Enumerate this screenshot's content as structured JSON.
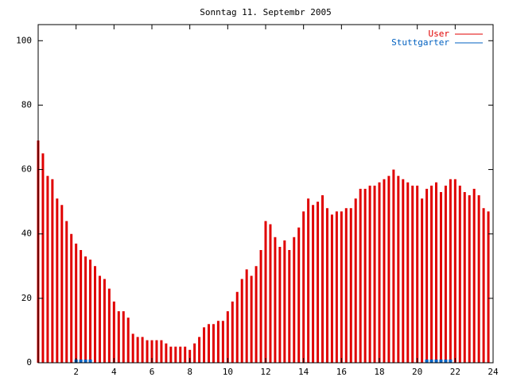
{
  "chart_data": {
    "type": "impulse",
    "title": "Sonntag 11. Septembr 2005",
    "x": [
      0,
      0.25,
      0.5,
      0.75,
      1,
      1.25,
      1.5,
      1.75,
      2,
      2.25,
      2.5,
      2.75,
      3,
      3.25,
      3.5,
      3.75,
      4,
      4.25,
      4.5,
      4.75,
      5,
      5.25,
      5.5,
      5.75,
      6,
      6.25,
      6.5,
      6.75,
      7,
      7.25,
      7.5,
      7.75,
      8,
      8.25,
      8.5,
      8.75,
      9,
      9.25,
      9.5,
      9.75,
      10,
      10.25,
      10.5,
      10.75,
      11,
      11.25,
      11.5,
      11.75,
      12,
      12.25,
      12.5,
      12.75,
      13,
      13.25,
      13.5,
      13.75,
      14,
      14.25,
      14.5,
      14.75,
      15,
      15.25,
      15.5,
      15.75,
      16,
      16.25,
      16.5,
      16.75,
      17,
      17.25,
      17.5,
      17.75,
      18,
      18.25,
      18.5,
      18.75,
      19,
      19.25,
      19.5,
      19.75,
      20,
      20.25,
      20.5,
      20.75,
      21,
      21.25,
      21.5,
      21.75,
      22,
      22.25,
      22.5,
      22.75,
      23,
      23.25,
      23.5,
      23.75
    ],
    "series": [
      {
        "name": "User",
        "color": "#e00000",
        "values": [
          69,
          65,
          58,
          57,
          51,
          49,
          44,
          40,
          37,
          35,
          33,
          32,
          30,
          27,
          26,
          23,
          19,
          16,
          16,
          14,
          9,
          8,
          8,
          7,
          7,
          7,
          7,
          6,
          5,
          5,
          5,
          5,
          4,
          6,
          8,
          11,
          12,
          12,
          13,
          13,
          16,
          19,
          22,
          26,
          29,
          27,
          30,
          35,
          44,
          43,
          39,
          36,
          38,
          35,
          39,
          42,
          47,
          51,
          49,
          50,
          52,
          48,
          46,
          47,
          47,
          48,
          48,
          51,
          54,
          54,
          55,
          55,
          56,
          57,
          58,
          60,
          58,
          57,
          56,
          55,
          55,
          51,
          54,
          55,
          56,
          53,
          55,
          57,
          57,
          55,
          53,
          52,
          54,
          52,
          48,
          47
        ]
      },
      {
        "name": "Stuttgarter",
        "color": "#0060c0",
        "values": [
          0,
          0,
          0,
          0,
          0,
          0,
          0,
          0,
          1,
          1,
          1,
          1,
          0,
          0,
          0,
          0,
          0,
          0,
          0,
          0,
          0,
          0,
          0,
          0,
          0,
          0,
          0,
          0,
          0,
          0,
          0,
          0,
          0,
          0,
          0,
          0,
          0,
          0,
          0,
          0,
          0,
          0,
          0,
          0,
          0,
          0,
          0,
          0,
          0,
          0,
          0,
          0,
          0,
          0,
          0,
          0,
          0,
          0,
          0,
          0,
          0,
          0,
          0,
          0,
          0,
          0,
          0,
          0,
          0,
          0,
          0,
          0,
          0,
          0,
          0,
          0,
          0,
          0,
          0,
          0,
          0,
          0,
          1,
          1,
          1,
          1,
          1,
          1,
          0,
          0,
          0,
          0,
          0,
          0,
          0,
          0
        ]
      }
    ],
    "xlim": [
      0,
      24
    ],
    "xticks": [
      2,
      4,
      6,
      8,
      10,
      12,
      14,
      16,
      18,
      20,
      22,
      24
    ],
    "ylim": [
      0,
      105
    ],
    "yticks": [
      0,
      20,
      40,
      60,
      80,
      100
    ],
    "legend": "top-right"
  }
}
